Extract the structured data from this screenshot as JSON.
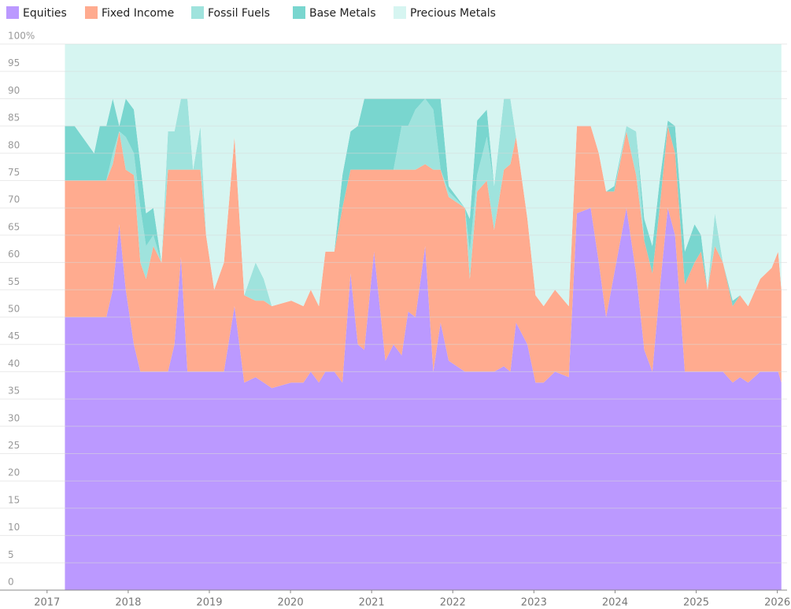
{
  "chart_data": {
    "type": "stacked_area",
    "x": [
      2017.22,
      2017.34,
      2017.58,
      2017.65,
      2017.73,
      2017.81,
      2017.89,
      2017.97,
      2018.07,
      2018.15,
      2018.22,
      2018.31,
      2018.41,
      2018.49,
      2018.57,
      2018.65,
      2018.73,
      2018.8,
      2018.89,
      2018.96,
      2019.06,
      2019.18,
      2019.31,
      2019.43,
      2019.57,
      2019.67,
      2019.77,
      2020.01,
      2020.16,
      2020.25,
      2020.35,
      2020.43,
      2020.54,
      2020.64,
      2020.74,
      2020.83,
      2020.91,
      2021.03,
      2021.17,
      2021.27,
      2021.37,
      2021.45,
      2021.54,
      2021.66,
      2021.76,
      2021.85,
      2021.95,
      2022.15,
      2022.21,
      2022.3,
      2022.42,
      2022.51,
      2022.63,
      2022.71,
      2022.78,
      2022.92,
      2023.02,
      2023.12,
      2023.26,
      2023.43,
      2023.53,
      2023.7,
      2023.8,
      2023.89,
      2023.99,
      2024.14,
      2024.26,
      2024.36,
      2024.46,
      2024.55,
      2024.65,
      2024.74,
      2024.86,
      2024.98,
      2025.06,
      2025.14,
      2025.23,
      2025.33,
      2025.45,
      2025.54,
      2025.64,
      2025.79,
      2025.93,
      2026.01,
      2026.05
    ],
    "series": [
      {
        "name": "Equities",
        "color": "#bb99ff",
        "values": [
          50,
          50,
          50,
          50,
          50,
          55,
          67,
          55,
          45,
          40,
          40,
          40,
          40,
          40,
          45,
          61,
          40,
          40,
          40,
          40,
          40,
          40,
          52,
          38,
          39,
          38,
          37,
          38,
          38,
          40,
          38,
          40,
          40,
          38,
          58,
          45,
          44,
          62,
          42,
          45,
          43,
          51,
          50,
          63,
          40,
          49,
          42,
          40,
          40,
          40,
          40,
          40,
          41,
          40,
          49,
          45,
          38,
          38,
          40,
          39,
          69,
          70,
          60,
          50,
          58,
          70,
          58,
          44,
          40,
          55,
          70,
          65,
          40,
          40,
          40,
          40,
          40,
          40,
          38,
          39,
          38,
          40,
          40,
          40,
          38
        ]
      },
      {
        "name": "Fixed Income",
        "color": "#ffab8f",
        "values": [
          25,
          25,
          25,
          25,
          25,
          23,
          17,
          22,
          31,
          20,
          17,
          23,
          20,
          37,
          32,
          16,
          37,
          37,
          37,
          25,
          15,
          20,
          31,
          16,
          14,
          15,
          15,
          15,
          14,
          15,
          14,
          22,
          22,
          32,
          19,
          32,
          33,
          15,
          35,
          32,
          34,
          26,
          27,
          15,
          37,
          28,
          30,
          30,
          17,
          33,
          35,
          26,
          36,
          38,
          34,
          23,
          16,
          14,
          15,
          13,
          16,
          15,
          20,
          23,
          15,
          14,
          18,
          20,
          18,
          15,
          15,
          15,
          16,
          20,
          22,
          15,
          23,
          20,
          14,
          15,
          14,
          17,
          19,
          22,
          17
        ]
      },
      {
        "name": "Fossil Fuels",
        "color": "#9fe3dd",
        "values": [
          0,
          0,
          0,
          0,
          0,
          2,
          0,
          6,
          4,
          10,
          6,
          2,
          0,
          7,
          7,
          13,
          13,
          0,
          8,
          0,
          0,
          0,
          0,
          0,
          7,
          4,
          0,
          0,
          0,
          0,
          0,
          0,
          0,
          0,
          0,
          0,
          0,
          0,
          0,
          0,
          8,
          8,
          11,
          12,
          11,
          0,
          1,
          0,
          5,
          3,
          8,
          8,
          13,
          12,
          0,
          0,
          0,
          0,
          0,
          0,
          0,
          0,
          0,
          0,
          0,
          1,
          8,
          0,
          0,
          0,
          0,
          0,
          0,
          0,
          0,
          0,
          6,
          0,
          0,
          0,
          0,
          0,
          0,
          0,
          0
        ]
      },
      {
        "name": "Base Metals",
        "color": "#79d6cf",
        "values": [
          10,
          10,
          5,
          10,
          10,
          10,
          1,
          7,
          8,
          8,
          6,
          5,
          0,
          0,
          0,
          0,
          0,
          0,
          0,
          0,
          0,
          0,
          0,
          0,
          0,
          0,
          0,
          0,
          0,
          0,
          0,
          0,
          0,
          6,
          7,
          8,
          13,
          13,
          13,
          13,
          5,
          5,
          2,
          0,
          2,
          13,
          1,
          0,
          6,
          10,
          5,
          0,
          0,
          0,
          0,
          0,
          0,
          0,
          0,
          0,
          0,
          0,
          0,
          0,
          1,
          0,
          0,
          4,
          5,
          5,
          1,
          5,
          6,
          7,
          3,
          0,
          0,
          0,
          1,
          0,
          0,
          0,
          0,
          0,
          0
        ]
      },
      {
        "name": "Precious Metals",
        "color": "#d6f5f1",
        "values": [
          15,
          15,
          20,
          15,
          15,
          10,
          15,
          10,
          12,
          22,
          31,
          30,
          40,
          16,
          16,
          10,
          10,
          23,
          15,
          35,
          45,
          40,
          17,
          46,
          40,
          43,
          48,
          47,
          48,
          45,
          48,
          38,
          38,
          24,
          16,
          15,
          10,
          10,
          10,
          10,
          10,
          10,
          10,
          10,
          10,
          10,
          26,
          30,
          32,
          14,
          12,
          26,
          10,
          10,
          17,
          32,
          46,
          48,
          45,
          48,
          15,
          15,
          20,
          27,
          26,
          15,
          16,
          32,
          37,
          25,
          14,
          15,
          38,
          33,
          35,
          45,
          31,
          40,
          47,
          46,
          48,
          43,
          41,
          38,
          45
        ]
      }
    ],
    "xlim": [
      2016.42,
      2026.12
    ],
    "xticks": [
      2017,
      2018,
      2019,
      2020,
      2021,
      2022,
      2023,
      2024,
      2025,
      2026
    ],
    "ylim": [
      0,
      100
    ],
    "yticks": [
      0,
      5,
      10,
      15,
      20,
      25,
      30,
      35,
      40,
      45,
      50,
      55,
      60,
      65,
      70,
      75,
      80,
      85,
      90,
      95,
      {
        "value": 100,
        "label": "100%"
      }
    ],
    "grid": true,
    "legend": "top-left"
  }
}
